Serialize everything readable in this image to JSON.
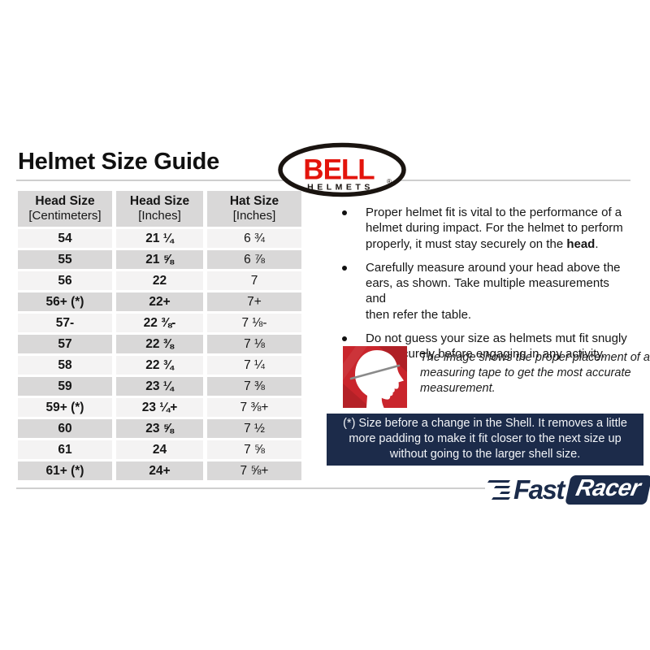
{
  "page": {
    "title": "Helmet Size Guide"
  },
  "bell_logo": {
    "brand": "BELL",
    "sub": "HELMETS",
    "reg": "®",
    "brand_color": "#e3140c",
    "outline_color": "#1a1410"
  },
  "table": {
    "headers": [
      {
        "line1": "Head Size",
        "line2": "[Centimeters]"
      },
      {
        "line1": "Head Size",
        "line2": "[Inches]"
      },
      {
        "line1": "Hat Size",
        "line2": "[Inches]"
      }
    ],
    "rows": [
      [
        "54",
        "21 ¼",
        "6 ¾"
      ],
      [
        "55",
        "21 ⅝",
        "6 ⅞"
      ],
      [
        "56",
        "22",
        "7"
      ],
      [
        "56+ (*)",
        "22+",
        "7+"
      ],
      [
        "57-",
        "22 ⅜-",
        "7 ⅛-"
      ],
      [
        "57",
        "22 ⅜",
        "7 ⅛"
      ],
      [
        "58",
        "22 ¾",
        "7 ¼"
      ],
      [
        "59",
        "23 ¼",
        "7 ⅜"
      ],
      [
        "59+ (*)",
        "23 ¼+",
        "7 ⅜+"
      ],
      [
        "60",
        "23 ⅝",
        "7 ½"
      ],
      [
        "61",
        "24",
        "7 ⅝"
      ],
      [
        "61+ (*)",
        "24+",
        "7 ⅝+"
      ]
    ],
    "header_bg": "#d9d8d8",
    "row_light_bg": "#f4f3f3",
    "row_dark_bg": "#d9d8d8"
  },
  "bullets": [
    {
      "before": "Proper helmet fit is vital to the performance of a\nhelmet during impact. For the helmet to perform\nproperly, it must stay securely on the ",
      "bold": "head",
      "after": "."
    },
    {
      "before": "Carefully measure around your head above the\nears, as shown. Take multiple measurements and\nthen refer the table.",
      "bold": "",
      "after": ""
    },
    {
      "before": "Do not guess your size as helmets mut fit snugly\nand securely before engaging in any activity.",
      "bold": "",
      "after": ""
    }
  ],
  "head_figure": {
    "icon": "head-profile-measuring-tape-icon",
    "bg_color": "#c9252c",
    "caption": "The image shows the proper placement of a\nmeasuring tape to get the most accurate\nmeasurement."
  },
  "note_box": {
    "text": "(*) Size before a change in the Shell. It removes a little\nmore padding to make it fit closer to the next size up\nwithout going to the larger shell size.",
    "bg_color": "#1c2b4a"
  },
  "footer_logo": {
    "fast": "Fast",
    "racer": "Racer",
    "color": "#1b2b4a"
  }
}
